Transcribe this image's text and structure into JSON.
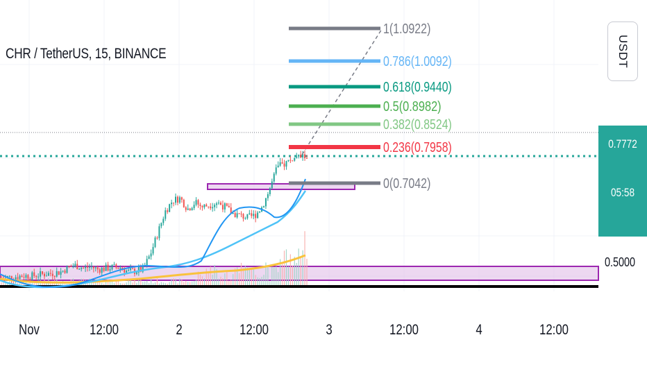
{
  "symbol_title": "CHR / TetherUS, 15, BINANCE",
  "currency_button": "USDT",
  "price_label": "0.7772",
  "countdown": "05:58",
  "level_label": "0.5000",
  "colors": {
    "up": "#26a69a",
    "down": "#ef5350",
    "ema_fast": "#2196f3",
    "ema_mid": "#4fc3f7",
    "ema_slow": "#f9c23c",
    "zone": "#9c27b0",
    "fib_1": "#787b86",
    "fib_0786": "#64b5f6",
    "fib_0618": "#089981",
    "fib_05": "#4caf50",
    "fib_0382": "#81c784",
    "fib_0236": "#f23645",
    "fib_0": "#787b86"
  },
  "chart_data": {
    "type": "candlestick",
    "symbol": "CHR/USDT",
    "interval": "15",
    "exchange": "BINANCE",
    "x_ticks": [
      "Nov",
      "12:00",
      "2",
      "12:00",
      "3",
      "12:00",
      "4",
      "12:00"
    ],
    "y_ticks": [
      "0.7772",
      "0.5000"
    ],
    "last_price": 0.7772,
    "support_level": 0.5,
    "fib_levels": [
      {
        "ratio": "1",
        "price": "1.0922",
        "label": "1(1.0922)",
        "color": "#787b86"
      },
      {
        "ratio": "0.786",
        "price": "1.0092",
        "label": "0.786(1.0092)",
        "color": "#64b5f6"
      },
      {
        "ratio": "0.618",
        "price": "0.9440",
        "label": "0.618(0.9440)",
        "color": "#089981"
      },
      {
        "ratio": "0.5",
        "price": "0.8982",
        "label": "0.5(0.8982)",
        "color": "#4caf50"
      },
      {
        "ratio": "0.382",
        "price": "0.8524",
        "label": "0.382(0.8524)",
        "color": "#81c784"
      },
      {
        "ratio": "0.236",
        "price": "0.7958",
        "label": "0.236(0.7958)",
        "color": "#f23645"
      },
      {
        "ratio": "0",
        "price": "0.7042",
        "label": "0(0.7042)",
        "color": "#787b86"
      }
    ],
    "price_path": [
      0.498,
      0.497,
      0.499,
      0.501,
      0.5,
      0.503,
      0.505,
      0.507,
      0.51,
      0.52,
      0.525,
      0.518,
      0.522,
      0.515,
      0.518,
      0.52,
      0.52,
      0.51,
      0.512,
      0.515,
      0.55,
      0.6,
      0.65,
      0.675,
      0.68,
      0.655,
      0.67,
      0.66,
      0.665,
      0.67,
      0.66,
      0.645,
      0.64,
      0.635,
      0.64,
      0.66,
      0.7,
      0.75,
      0.76,
      0.77,
      0.775,
      0.7772
    ]
  }
}
